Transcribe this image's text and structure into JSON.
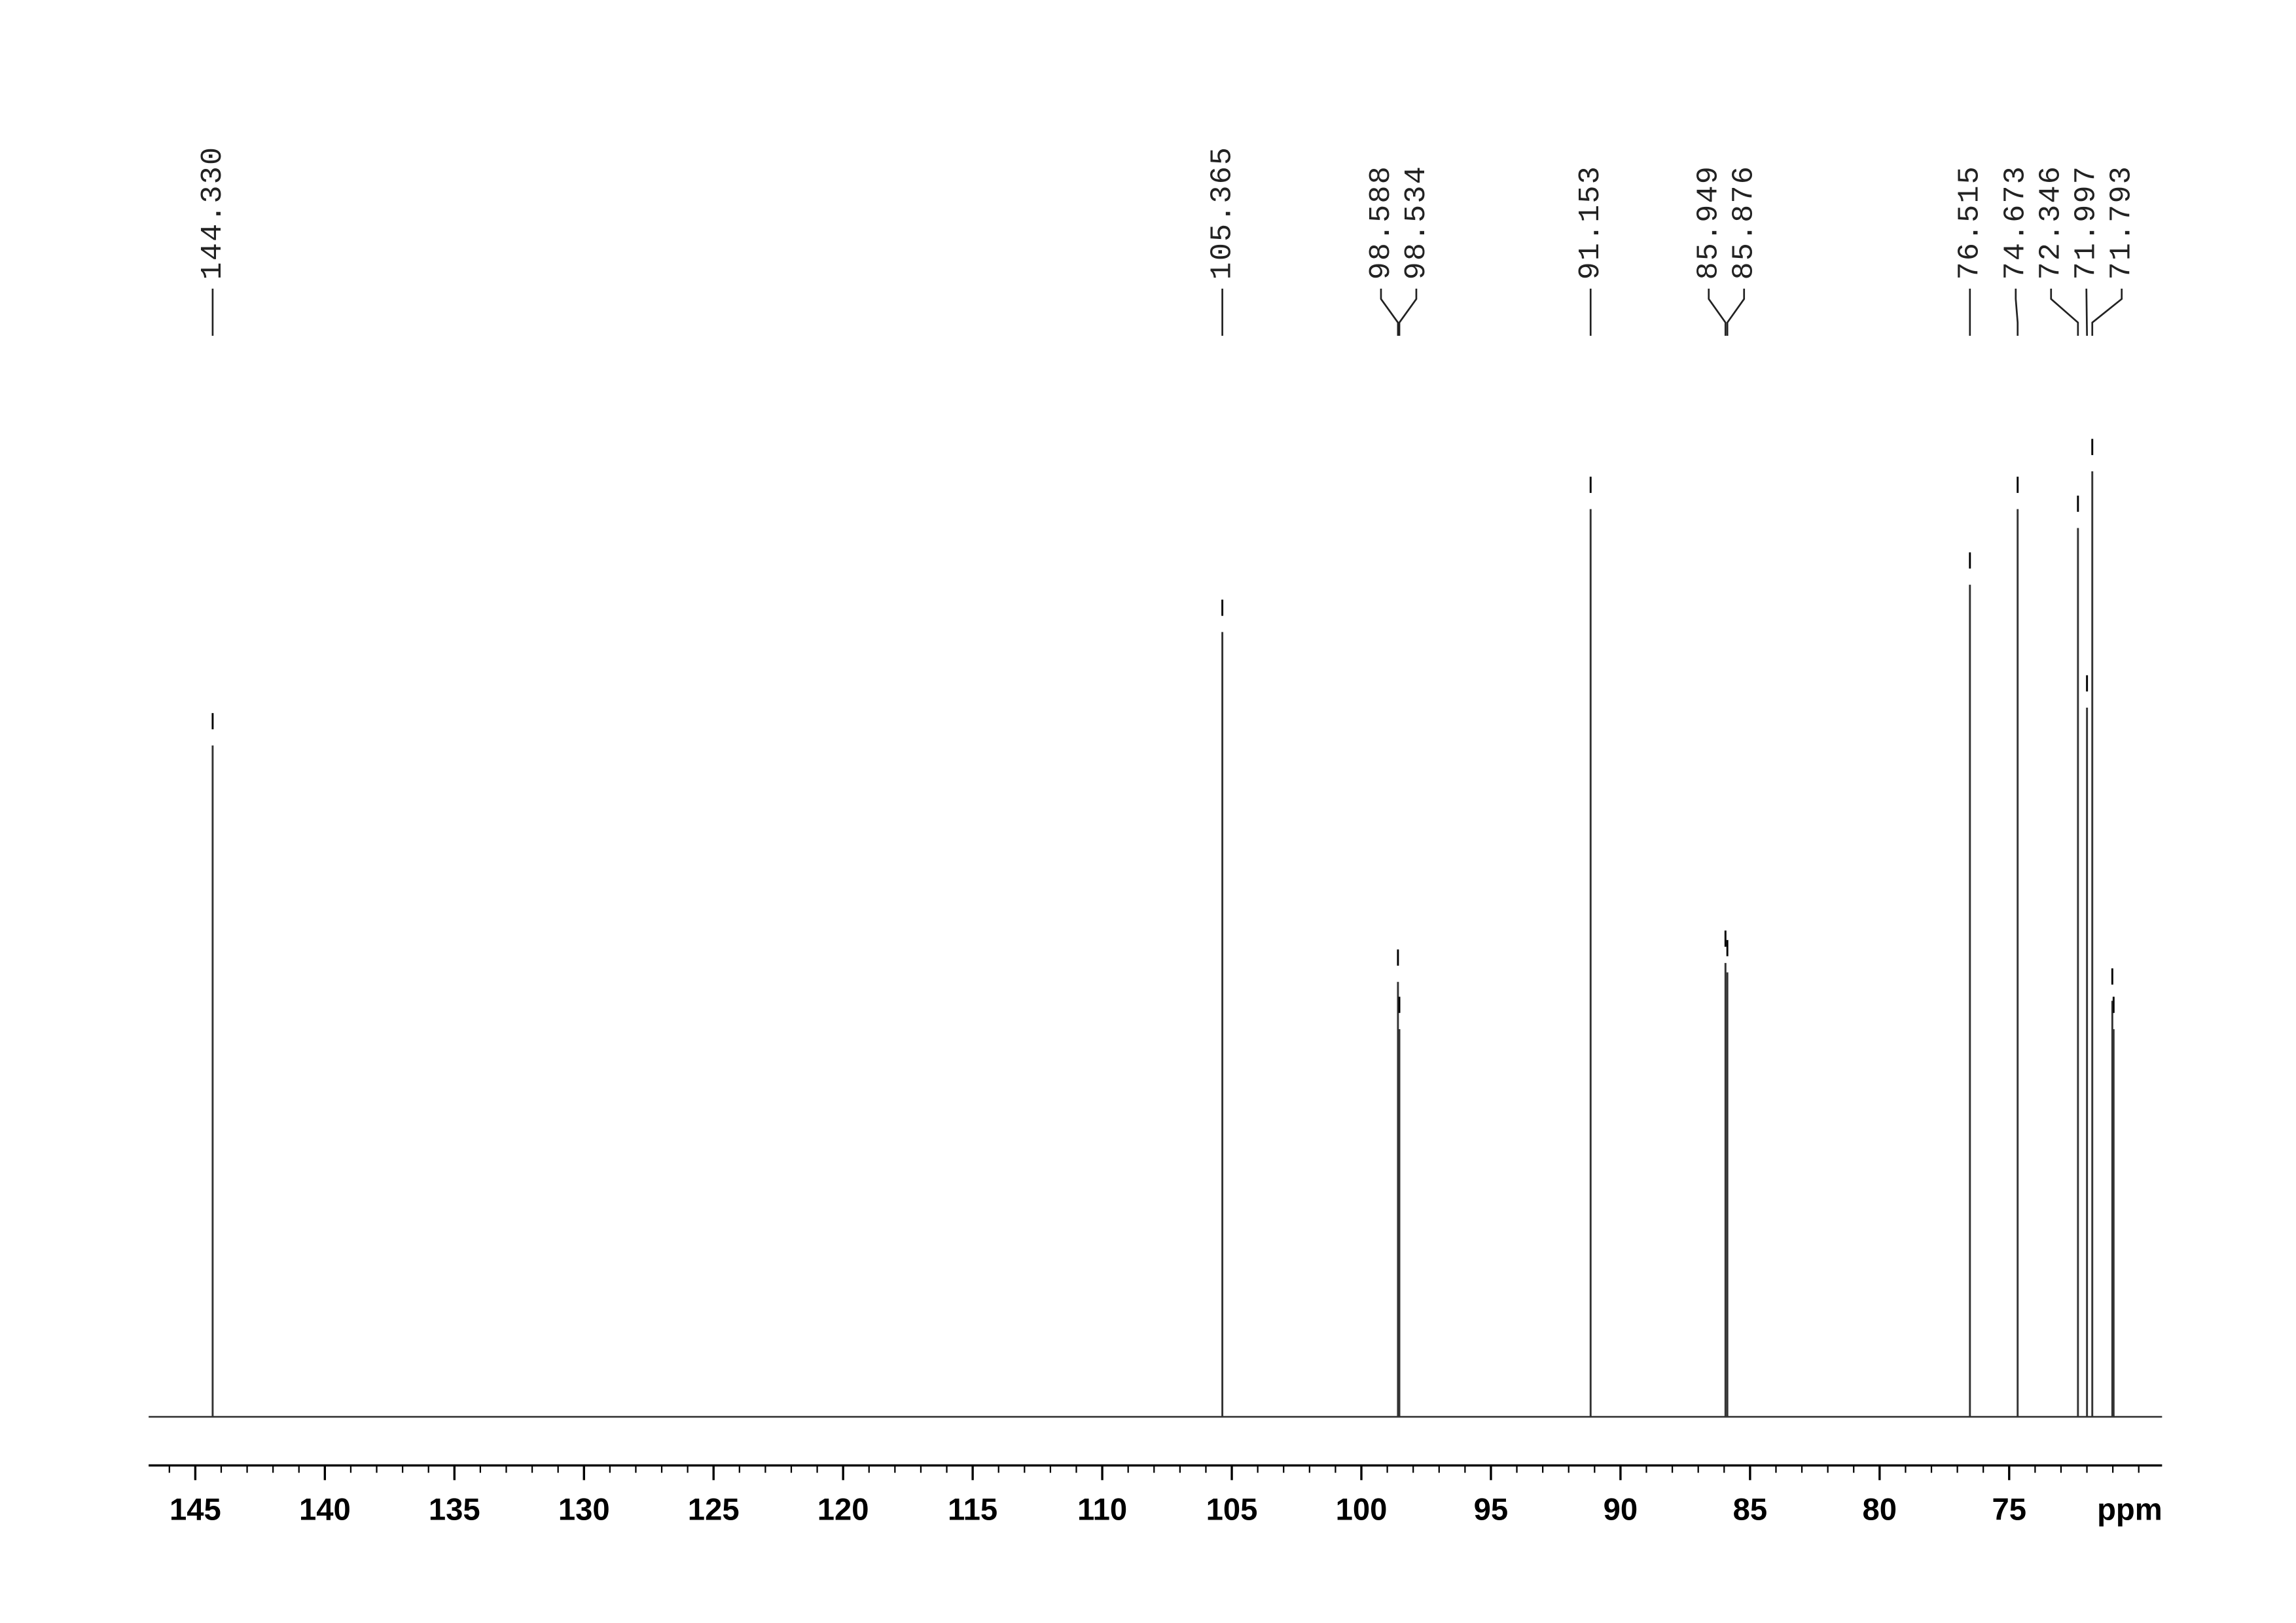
{
  "chart_data": {
    "type": "spectrum",
    "xlabel": "ppm",
    "x": [
      {
        "value": 144.33,
        "label": "144.330"
      },
      {
        "value": 105.365,
        "label": "105.365"
      },
      {
        "value": 98.588,
        "label": "98.588"
      },
      {
        "value": 98.534,
        "label": "98.534"
      },
      {
        "value": 91.153,
        "label": "91.153"
      },
      {
        "value": 85.949,
        "label": "85.949"
      },
      {
        "value": 85.876,
        "label": "85.876"
      },
      {
        "value": 76.515,
        "label": "76.515"
      },
      {
        "value": 74.673,
        "label": "74.673"
      },
      {
        "value": 72.346,
        "label": "72.346"
      },
      {
        "value": 71.997,
        "label": "71.997"
      },
      {
        "value": 71.793,
        "label": "71.793"
      },
      71.02,
      70.97
    ],
    "values": [
      71,
      83,
      46,
      41,
      96,
      48,
      47,
      88,
      96,
      94,
      75,
      100,
      44,
      41
    ],
    "color": "#333333",
    "xlim": [
      146.8,
      69.1
    ],
    "xticks": [
      145,
      140,
      135,
      130,
      125,
      120,
      115,
      110,
      105,
      100,
      95,
      90,
      85,
      80,
      75
    ],
    "xminor_step": 1,
    "ylim": [
      0,
      100
    ]
  }
}
